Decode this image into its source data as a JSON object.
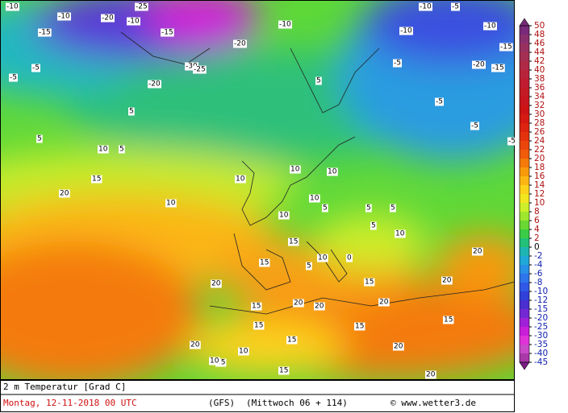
{
  "legend": {
    "labels": [
      50,
      48,
      46,
      44,
      42,
      40,
      38,
      36,
      34,
      32,
      30,
      28,
      26,
      24,
      22,
      20,
      18,
      16,
      14,
      12,
      10,
      8,
      6,
      4,
      2,
      0,
      -2,
      -4,
      -6,
      -8,
      -10,
      -12,
      -15,
      -20,
      -25,
      -30,
      -35,
      -40,
      -45
    ],
    "colors": [
      "#7a2a7a",
      "#8a2f6e",
      "#98305f",
      "#a52f52",
      "#b02a45",
      "#b9233a",
      "#c01d30",
      "#c41a26",
      "#c8161e",
      "#cc1414",
      "#d41a12",
      "#dc2410",
      "#e3330e",
      "#ea460c",
      "#f05c0a",
      "#f47a0a",
      "#f8990c",
      "#fbb614",
      "#fdd21c",
      "#f2e620",
      "#cdee2a",
      "#9fe62e",
      "#6ad832",
      "#3acc46",
      "#22c078",
      "#1eb4b0",
      "#20a8d8",
      "#2890e6",
      "#2e74ea",
      "#3058e6",
      "#3040d8",
      "#4a2ed0",
      "#7428d4",
      "#a020d8",
      "#c81ed8",
      "#e032d8",
      "#c84ac8",
      "#a838a8",
      "#7c1e86"
    ]
  },
  "map_labels": [
    -10,
    -15,
    -10,
    -20,
    -25,
    -20,
    -10,
    -30,
    -25,
    -20,
    -15,
    -10,
    -5,
    -5,
    -10,
    -20,
    -15,
    -5,
    5,
    -5,
    -5,
    -10,
    -5,
    -10,
    -15,
    -5,
    5,
    10,
    5,
    5,
    10,
    15,
    20,
    10,
    10,
    10,
    15,
    10,
    5,
    10,
    5,
    5,
    10,
    15,
    15,
    20,
    20,
    20,
    15,
    20,
    15,
    20,
    15,
    20,
    20,
    15,
    10,
    15,
    20,
    10,
    15,
    5,
    0,
    5,
    10,
    15,
    20
  ],
  "footer": {
    "title": "2 m Temperatur [Grad C]",
    "date": "Montag, 12-11-2018  00 UTC",
    "model": "(GFS)",
    "run": "(Mittwoch 06 + 114)",
    "credit": "© www.wetter3.de"
  }
}
